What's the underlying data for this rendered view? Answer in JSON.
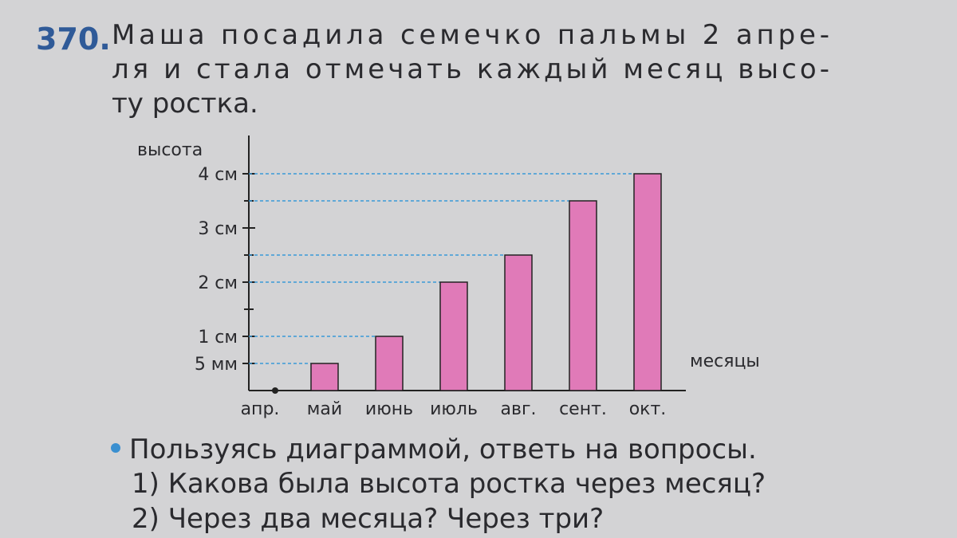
{
  "problem": {
    "number": "370.",
    "lines": [
      "Маша посадила семечко пальмы 2 апре-",
      "ля и стала отмечать каждый месяц высо-",
      "ту ростка."
    ]
  },
  "chart_data": {
    "type": "bar",
    "y_label": "высота",
    "x_label": "месяцы",
    "categories": [
      "апр.",
      "май",
      "июнь",
      "июль",
      "авг.",
      "сент.",
      "окт."
    ],
    "values": [
      0,
      0.5,
      1,
      2,
      2.5,
      3.5,
      4
    ],
    "color": "#e07ab8",
    "ylim": [
      0,
      4.5
    ],
    "yticks": [
      {
        "value": 0.5,
        "label": "5 мм"
      },
      {
        "value": 1,
        "label": "1 см"
      },
      {
        "value": 2,
        "label": "2 см"
      },
      {
        "value": 3,
        "label": "3 см"
      },
      {
        "value": 4,
        "label": "4 см"
      }
    ],
    "yticks_minor": [
      1.5,
      2.5,
      3.5
    ]
  },
  "questions": {
    "intro": "Пользуясь диаграммой, ответь на вопросы.",
    "items": [
      "1) Какова была высота ростка через месяц?",
      "2) Через два месяца? Через три?"
    ]
  }
}
